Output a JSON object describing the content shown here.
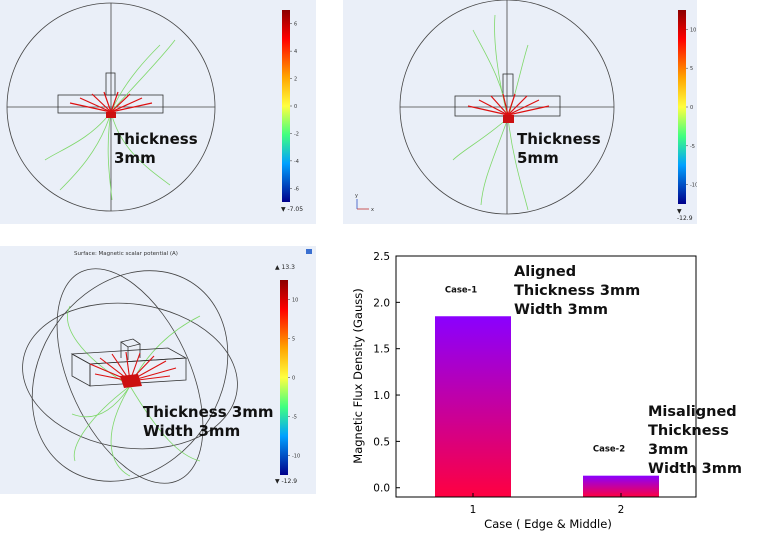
{
  "panels": {
    "p1": {
      "label": "Thickness\n3mm",
      "cbar_min": "▼ -7.05",
      "ticks": [
        "6",
        "4",
        "2",
        "0",
        "-2",
        "-4",
        "-6"
      ]
    },
    "p2": {
      "label": "Thickness\n5mm",
      "cbar_min": "▼ -12.9",
      "ticks": [
        "10",
        "5",
        "0",
        "-5",
        "-10"
      ]
    },
    "p3": {
      "title": "Surface: Magnetic scalar potential (A)",
      "label": "Thickness 3mm\nWidth 3mm",
      "cbar_max": "▲ 13.3",
      "cbar_min": "▼ -12.9",
      "ticks": [
        "10",
        "5",
        "0",
        "-5",
        "-10"
      ]
    },
    "axis_y": "y",
    "axis_x": "x"
  },
  "colors": {
    "bar_top": "#8a00ff",
    "bar_bottom": "#ff0040",
    "panel_bg": "#eaeff8"
  },
  "chart_data": {
    "type": "bar",
    "categories": [
      "1",
      "2"
    ],
    "values": [
      1.85,
      0.13
    ],
    "xlabel": "Case ( Edge & Middle)",
    "ylabel": "Magnetic Flux Density (Gauss)",
    "ylim": [
      -0.1,
      2.5
    ],
    "yticks": [
      "0.0",
      "0.5",
      "1.0",
      "1.5",
      "2.0",
      "2.5"
    ],
    "bar_tags": [
      "Case-1",
      "Case-2"
    ],
    "annotations": [
      "Aligned\nThickness 3mm\nWidth 3mm",
      "Misaligned\nThickness 3mm\nWidth 3mm"
    ]
  }
}
